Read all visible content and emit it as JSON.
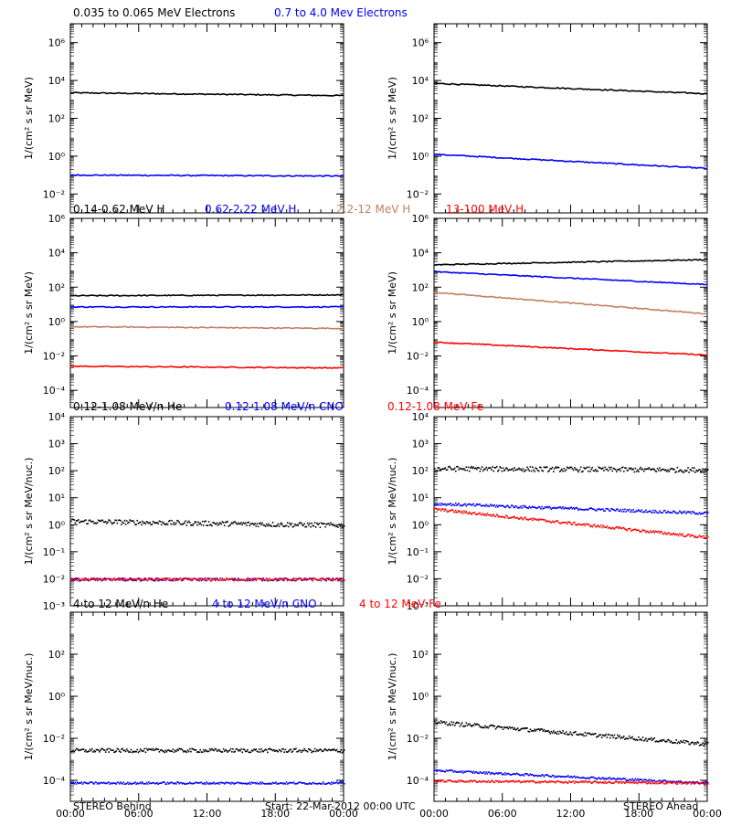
{
  "colors": {
    "black": "#000000",
    "blue": "#0000ff",
    "tan": "#c08060",
    "red": "#ff0000"
  },
  "footer": {
    "left": "STEREO Behind",
    "center": "Start: 22-Mar-2012 00:00 UTC",
    "right": "STEREO Ahead"
  },
  "chart_data": [
    {
      "type": "line",
      "row": 0,
      "col": 0,
      "titles": [
        {
          "text": "0.035 to 0.065 MeV Electrons",
          "color": "#000000"
        },
        {
          "text": "0.7 to 4.0 Mev Electrons",
          "color": "#0000ff"
        }
      ],
      "ylabel": "1/(cm² s sr MeV)",
      "yscale": "log",
      "ylim_exp": [
        -3,
        7
      ],
      "ytick_labels": [
        "10⁻²",
        "10⁰",
        "10²",
        "10⁴",
        "10⁶"
      ],
      "xlim": [
        "00:00",
        "24:00"
      ],
      "series": [
        {
          "color": "#000000",
          "style": "line",
          "start_exp": 3.35,
          "end_exp": 3.2
        },
        {
          "color": "#0000ff",
          "style": "line",
          "start_exp": -1.0,
          "end_exp": -1.05
        }
      ]
    },
    {
      "type": "line",
      "row": 0,
      "col": 1,
      "titles": [],
      "ylabel": "1/(cm² s sr MeV)",
      "yscale": "log",
      "ylim_exp": [
        -3,
        7
      ],
      "ytick_labels": [
        "10⁻²",
        "10⁰",
        "10²",
        "10⁴",
        "10⁶"
      ],
      "xlim": [
        "00:00",
        "24:00"
      ],
      "series": [
        {
          "color": "#000000",
          "style": "line",
          "start_exp": 3.85,
          "end_exp": 3.3
        },
        {
          "color": "#0000ff",
          "style": "line",
          "start_exp": 0.1,
          "end_exp": -0.65
        }
      ]
    },
    {
      "type": "line",
      "row": 1,
      "col": 0,
      "titles": [
        {
          "text": "0.14-0.62 MeV H",
          "color": "#000000"
        },
        {
          "text": "0.62-2.22 MeV H",
          "color": "#0000ff"
        },
        {
          "text": "2.2-12 MeV H",
          "color": "#c08060"
        },
        {
          "text": "13-100 MeV H",
          "color": "#ff0000"
        }
      ],
      "ylabel": "1/(cm² s sr MeV)",
      "yscale": "log",
      "ylim_exp": [
        -5,
        6
      ],
      "ytick_labels": [
        "10⁻⁴",
        "10⁻²",
        "10⁰",
        "10²",
        "10⁴",
        "10⁶"
      ],
      "xlim": [
        "00:00",
        "24:00"
      ],
      "series": [
        {
          "color": "#000000",
          "style": "line",
          "start_exp": 1.5,
          "end_exp": 1.55
        },
        {
          "color": "#0000ff",
          "style": "line",
          "start_exp": 0.85,
          "end_exp": 0.85
        },
        {
          "color": "#c08060",
          "style": "line",
          "start_exp": -0.3,
          "end_exp": -0.4
        },
        {
          "color": "#ff0000",
          "style": "line",
          "start_exp": -2.6,
          "end_exp": -2.7
        }
      ]
    },
    {
      "type": "line",
      "row": 1,
      "col": 1,
      "titles": [],
      "ylabel": "1/(cm² s sr MeV)",
      "yscale": "log",
      "ylim_exp": [
        -5,
        6
      ],
      "ytick_labels": [
        "10⁻⁴",
        "10⁻²",
        "10⁰",
        "10²",
        "10⁴",
        "10⁶"
      ],
      "xlim": [
        "00:00",
        "24:00"
      ],
      "series": [
        {
          "color": "#000000",
          "style": "line",
          "start_exp": 3.3,
          "end_exp": 3.6
        },
        {
          "color": "#0000ff",
          "style": "line",
          "start_exp": 2.9,
          "end_exp": 2.15
        },
        {
          "color": "#c08060",
          "style": "line",
          "start_exp": 1.7,
          "end_exp": 0.45
        },
        {
          "color": "#ff0000",
          "style": "line",
          "start_exp": -1.2,
          "end_exp": -1.95
        }
      ]
    },
    {
      "type": "scatter",
      "row": 2,
      "col": 0,
      "titles": [
        {
          "text": "0.12-1.08 MeV/n He",
          "color": "#000000"
        },
        {
          "text": "0.12-1.08 MeV/n CNO",
          "color": "#0000ff"
        },
        {
          "text": "0.12-1.08 MeV Fe",
          "color": "#ff0000"
        }
      ],
      "ylabel": "1/(cm² s sr MeV/nuc.)",
      "yscale": "log",
      "ylim_exp": [
        -3,
        4
      ],
      "ytick_labels": [
        "10⁻³",
        "10⁻²",
        "10⁻¹",
        "10⁰",
        "10¹",
        "10²",
        "10³",
        "10⁴"
      ],
      "xlim": [
        "00:00",
        "24:00"
      ],
      "series": [
        {
          "color": "#000000",
          "style": "dots",
          "start_exp": 0.15,
          "end_exp": 0.0
        },
        {
          "color": "#0000ff",
          "style": "dots",
          "start_exp": -2.0,
          "end_exp": -2.0
        },
        {
          "color": "#ff0000",
          "style": "dots",
          "start_exp": -2.0,
          "end_exp": -2.0
        }
      ]
    },
    {
      "type": "scatter",
      "row": 2,
      "col": 1,
      "titles": [],
      "ylabel": "1/(cm² s sr MeV/nuc.)",
      "yscale": "log",
      "ylim_exp": [
        -3,
        4
      ],
      "ytick_labels": [
        "10⁻³",
        "10⁻²",
        "10⁻¹",
        "10⁰",
        "10¹",
        "10²",
        "10³",
        "10⁴"
      ],
      "xlim": [
        "00:00",
        "24:00"
      ],
      "series": [
        {
          "color": "#000000",
          "style": "dots",
          "start_exp": 2.1,
          "end_exp": 2.05
        },
        {
          "color": "#0000ff",
          "style": "dots",
          "start_exp": 0.8,
          "end_exp": 0.45
        },
        {
          "color": "#ff0000",
          "style": "dots",
          "start_exp": 0.6,
          "end_exp": -0.45
        }
      ]
    },
    {
      "type": "scatter",
      "row": 3,
      "col": 0,
      "titles": [
        {
          "text": "4 to 12 MeV/n He",
          "color": "#000000"
        },
        {
          "text": "4 to 12 MeV/n CNO",
          "color": "#0000ff"
        },
        {
          "text": "4 to 12 MeV Fe",
          "color": "#ff0000"
        }
      ],
      "ylabel": "1/(cm² s sr MeV/nuc.)",
      "yscale": "log",
      "ylim_exp": [
        -5,
        4
      ],
      "ytick_labels": [
        "10⁻⁴",
        "10⁻²",
        "10⁰",
        "10²"
      ],
      "xlim": [
        "00:00",
        "24:00"
      ],
      "series": [
        {
          "color": "#000000",
          "style": "dots",
          "start_exp": -2.55,
          "end_exp": -2.55
        },
        {
          "color": "#0000ff",
          "style": "dots",
          "start_exp": -4.1,
          "end_exp": -4.1
        }
      ]
    },
    {
      "type": "scatter",
      "row": 3,
      "col": 1,
      "titles": [],
      "ylabel": "1/(cm² s sr MeV/nuc.)",
      "yscale": "log",
      "ylim_exp": [
        -5,
        4
      ],
      "ytick_labels": [
        "10⁻⁴",
        "10⁻²",
        "10⁰",
        "10²"
      ],
      "xlim": [
        "00:00",
        "24:00"
      ],
      "series": [
        {
          "color": "#000000",
          "style": "dots",
          "start_exp": -1.2,
          "end_exp": -2.25
        },
        {
          "color": "#0000ff",
          "style": "dots",
          "start_exp": -3.5,
          "end_exp": -4.1
        },
        {
          "color": "#ff0000",
          "style": "dots",
          "start_exp": -4.0,
          "end_exp": -4.1
        }
      ]
    }
  ],
  "x_tick_labels": [
    "00:00",
    "06:00",
    "12:00",
    "18:00",
    "00:00"
  ]
}
